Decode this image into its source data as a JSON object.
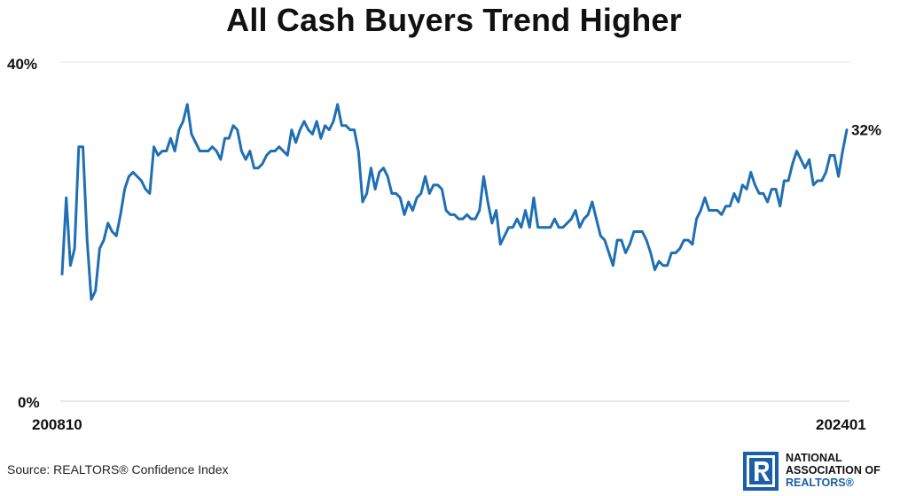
{
  "chart_data": {
    "type": "line",
    "title": "All Cash Buyers Trend Higher",
    "xlabel": "",
    "ylabel": "",
    "ylim": [
      0,
      40
    ],
    "yticks": [
      "40%",
      "0%"
    ],
    "x_start_label": "200810",
    "x_end_label": "202401",
    "end_value_label": "32%",
    "grid": true,
    "color": "#1f6fb2",
    "series": [
      {
        "values": [
          15,
          24,
          16,
          18,
          30,
          30,
          19,
          12,
          13,
          18,
          19,
          21,
          20,
          19.5,
          22,
          25,
          26.5,
          27,
          26.5,
          26,
          25,
          24.5,
          30,
          29,
          29.5,
          29.5,
          31,
          29.5,
          32,
          33,
          35,
          31.5,
          30.5,
          29.5,
          29.5,
          29.5,
          30,
          29.5,
          28.5,
          31,
          31,
          32.5,
          32,
          29.5,
          28.5,
          29.5,
          27.5,
          27.5,
          28,
          29,
          29.5,
          29.5,
          30,
          29.5,
          29,
          32,
          30.5,
          32,
          33,
          32,
          31.5,
          33,
          31,
          32.5,
          32,
          33,
          35,
          32.5,
          32.5,
          32,
          32,
          29.5,
          23.5,
          24.5,
          27.5,
          25,
          27,
          27.5,
          26.5,
          24.5,
          24.5,
          24,
          22,
          23.5,
          22.5,
          24,
          24.5,
          26.5,
          24.5,
          25.5,
          25.5,
          25,
          22.5,
          22,
          22,
          21.5,
          21.5,
          22,
          21.5,
          21.5,
          22.5,
          26.5,
          23.5,
          21,
          22.5,
          18.5,
          19.5,
          20.5,
          20.5,
          21.5,
          20.5,
          22.5,
          20.5,
          24,
          20.5,
          20.5,
          20.5,
          20.5,
          21.5,
          20.5,
          20.5,
          21,
          21.5,
          22.5,
          20.5,
          21.5,
          22,
          23.5,
          21.5,
          19.5,
          19,
          17.5,
          16,
          19,
          19,
          17.5,
          18.5,
          20,
          20,
          20,
          19,
          17.5,
          15.5,
          16.5,
          16,
          16,
          17.5,
          17.5,
          18,
          19,
          19,
          18.5,
          21.5,
          22.5,
          24,
          22.5,
          22.5,
          22.5,
          22,
          23,
          23,
          24.5,
          23.5,
          25.5,
          25,
          27,
          25.5,
          24.5,
          24.5,
          23.5,
          25,
          25,
          23,
          26,
          26,
          28,
          29.5,
          28.5,
          27.5,
          28.5,
          25.5,
          26,
          26,
          27,
          29,
          29,
          26.5,
          29.5,
          32
        ]
      }
    ]
  },
  "footer": {
    "source": "Source: REALTORS® Confidence Index",
    "logo_line1": "NATIONAL",
    "logo_line2": "ASSOCIATION OF",
    "logo_line3": "REALTORS®"
  }
}
